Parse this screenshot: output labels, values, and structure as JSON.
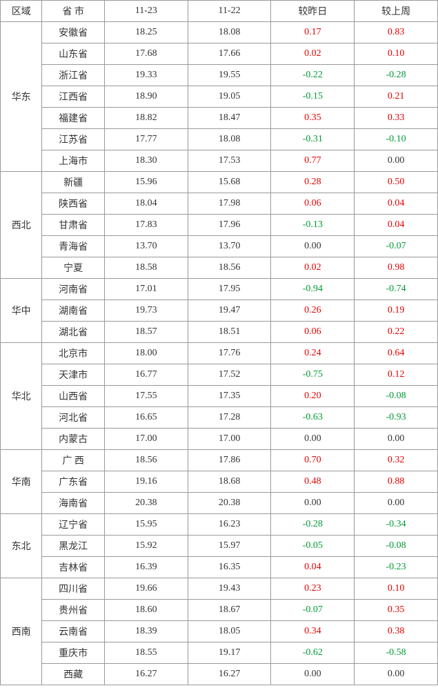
{
  "colors": {
    "positive": "#e60000",
    "negative": "#009933",
    "neutral": "#333333",
    "border": "#999999",
    "background": "#ffffff"
  },
  "header": {
    "region": "区域",
    "province": "省 市",
    "date1": "11-23",
    "date2": "11-22",
    "vs_yesterday": "较昨日",
    "vs_lastweek": "较上周"
  },
  "groups": [
    {
      "region": "华东",
      "rows": [
        {
          "prov": "安徽省",
          "d1": "18.25",
          "d2": "18.08",
          "dy": "0.17",
          "dw": "0.83"
        },
        {
          "prov": "山东省",
          "d1": "17.68",
          "d2": "17.66",
          "dy": "0.02",
          "dw": "0.10"
        },
        {
          "prov": "浙江省",
          "d1": "19.33",
          "d2": "19.55",
          "dy": "-0.22",
          "dw": "-0.28"
        },
        {
          "prov": "江西省",
          "d1": "18.90",
          "d2": "19.05",
          "dy": "-0.15",
          "dw": "0.21"
        },
        {
          "prov": "福建省",
          "d1": "18.82",
          "d2": "18.47",
          "dy": "0.35",
          "dw": "0.33"
        },
        {
          "prov": "江苏省",
          "d1": "17.77",
          "d2": "18.08",
          "dy": "-0.31",
          "dw": "-0.10"
        },
        {
          "prov": "上海市",
          "d1": "18.30",
          "d2": "17.53",
          "dy": "0.77",
          "dw": "0.00"
        }
      ]
    },
    {
      "region": "西北",
      "rows": [
        {
          "prov": "新疆",
          "d1": "15.96",
          "d2": "15.68",
          "dy": "0.28",
          "dw": "0.50"
        },
        {
          "prov": "陕西省",
          "d1": "18.04",
          "d2": "17.98",
          "dy": "0.06",
          "dw": "0.04"
        },
        {
          "prov": "甘肃省",
          "d1": "17.83",
          "d2": "17.96",
          "dy": "-0.13",
          "dw": "0.04"
        },
        {
          "prov": "青海省",
          "d1": "13.70",
          "d2": "13.70",
          "dy": "0.00",
          "dw": "-0.07"
        },
        {
          "prov": "宁夏",
          "d1": "18.58",
          "d2": "18.56",
          "dy": "0.02",
          "dw": "0.98"
        }
      ]
    },
    {
      "region": "华中",
      "rows": [
        {
          "prov": "河南省",
          "d1": "17.01",
          "d2": "17.95",
          "dy": "-0.94",
          "dw": "-0.74"
        },
        {
          "prov": "湖南省",
          "d1": "19.73",
          "d2": "19.47",
          "dy": "0.26",
          "dw": "0.19"
        },
        {
          "prov": "湖北省",
          "d1": "18.57",
          "d2": "18.51",
          "dy": "0.06",
          "dw": "0.22"
        }
      ]
    },
    {
      "region": "华北",
      "rows": [
        {
          "prov": "北京市",
          "d1": "18.00",
          "d2": "17.76",
          "dy": "0.24",
          "dw": "0.64"
        },
        {
          "prov": "天津市",
          "d1": "16.77",
          "d2": "17.52",
          "dy": "-0.75",
          "dw": "0.12"
        },
        {
          "prov": "山西省",
          "d1": "17.55",
          "d2": "17.35",
          "dy": "0.20",
          "dw": "-0.08"
        },
        {
          "prov": "河北省",
          "d1": "16.65",
          "d2": "17.28",
          "dy": "-0.63",
          "dw": "-0.93"
        },
        {
          "prov": "内蒙古",
          "d1": "17.00",
          "d2": "17.00",
          "dy": "0.00",
          "dw": "0.00"
        }
      ]
    },
    {
      "region": "华南",
      "rows": [
        {
          "prov": "广 西",
          "d1": "18.56",
          "d2": "17.86",
          "dy": "0.70",
          "dw": "0.32"
        },
        {
          "prov": "广东省",
          "d1": "19.16",
          "d2": "18.68",
          "dy": "0.48",
          "dw": "0.88"
        },
        {
          "prov": "海南省",
          "d1": "20.38",
          "d2": "20.38",
          "dy": "0.00",
          "dw": "0.00"
        }
      ]
    },
    {
      "region": "东北",
      "rows": [
        {
          "prov": "辽宁省",
          "d1": "15.95",
          "d2": "16.23",
          "dy": "-0.28",
          "dw": "-0.34"
        },
        {
          "prov": "黑龙江",
          "d1": "15.92",
          "d2": "15.97",
          "dy": "-0.05",
          "dw": "-0.08"
        },
        {
          "prov": "吉林省",
          "d1": "16.39",
          "d2": "16.35",
          "dy": "0.04",
          "dw": "-0.23"
        }
      ]
    },
    {
      "region": "西南",
      "rows": [
        {
          "prov": "四川省",
          "d1": "19.66",
          "d2": "19.43",
          "dy": "0.23",
          "dw": "0.10"
        },
        {
          "prov": "贵州省",
          "d1": "18.60",
          "d2": "18.67",
          "dy": "-0.07",
          "dw": "0.35"
        },
        {
          "prov": "云南省",
          "d1": "18.39",
          "d2": "18.05",
          "dy": "0.34",
          "dw": "0.38"
        },
        {
          "prov": "重庆市",
          "d1": "18.55",
          "d2": "19.17",
          "dy": "-0.62",
          "dw": "-0.58"
        },
        {
          "prov": "西藏",
          "d1": "16.27",
          "d2": "16.27",
          "dy": "0.00",
          "dw": "0.00"
        }
      ]
    }
  ]
}
